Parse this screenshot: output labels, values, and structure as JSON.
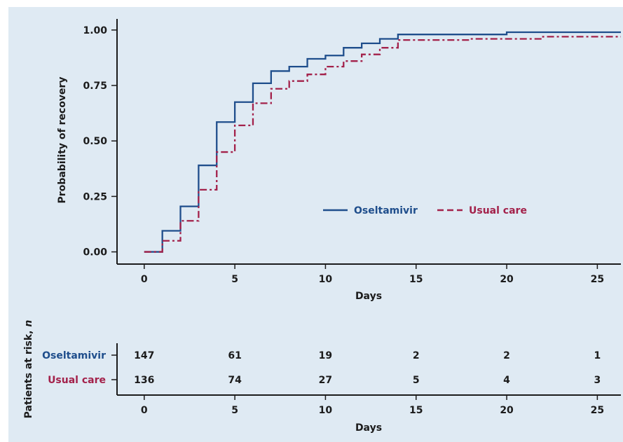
{
  "chart_data": {
    "type": "line",
    "step": true,
    "x_label": "Days",
    "y_label": "Probability of recovery",
    "xlim": [
      -1.5,
      26.3
    ],
    "ylim": [
      -0.055,
      1.05
    ],
    "x_ticks": [
      0,
      5,
      10,
      15,
      20,
      25
    ],
    "x_tick_labels": [
      "0",
      "5",
      "10",
      "15",
      "20",
      "25"
    ],
    "y_ticks": [
      0,
      0.25,
      0.5,
      0.75,
      1.0
    ],
    "y_tick_labels": [
      "0.00",
      "0.25",
      "0.50",
      "0.75",
      "1.00"
    ],
    "series": [
      {
        "name": "Oseltamivir",
        "color": "#1f4e8c",
        "dash": "solid",
        "steps": [
          [
            0,
            0.0
          ],
          [
            1,
            0.095
          ],
          [
            2,
            0.205
          ],
          [
            3,
            0.39
          ],
          [
            4,
            0.585
          ],
          [
            5,
            0.675
          ],
          [
            6,
            0.76
          ],
          [
            7,
            0.815
          ],
          [
            8,
            0.835
          ],
          [
            9,
            0.87
          ],
          [
            10,
            0.885
          ],
          [
            11,
            0.92
          ],
          [
            12,
            0.94
          ],
          [
            13,
            0.96
          ],
          [
            14,
            0.98
          ],
          [
            20,
            0.99
          ],
          [
            26.3,
            0.99
          ]
        ]
      },
      {
        "name": "Usual care",
        "color": "#a3214a",
        "dash": "dashdot",
        "steps": [
          [
            0,
            0.0
          ],
          [
            1,
            0.05
          ],
          [
            2,
            0.14
          ],
          [
            3,
            0.28
          ],
          [
            4,
            0.45
          ],
          [
            5,
            0.57
          ],
          [
            6,
            0.67
          ],
          [
            7,
            0.735
          ],
          [
            8,
            0.77
          ],
          [
            9,
            0.8
          ],
          [
            10,
            0.835
          ],
          [
            11,
            0.86
          ],
          [
            12,
            0.89
          ],
          [
            13,
            0.92
          ],
          [
            14,
            0.955
          ],
          [
            18,
            0.96
          ],
          [
            22,
            0.97
          ],
          [
            26.3,
            0.97
          ]
        ]
      }
    ],
    "legend_position": "center-right inside plot",
    "grid": false
  },
  "risk_table": {
    "y_label_text": "Patients at risk, ",
    "y_label_n": "n",
    "x_label": "Days",
    "time_points": [
      0,
      5,
      10,
      15,
      20,
      25
    ],
    "rows": [
      {
        "name": "Oseltamivir",
        "color": "#1f4e8c",
        "counts": [
          "147",
          "61",
          "19",
          "2",
          "2",
          "1"
        ]
      },
      {
        "name": "Usual care",
        "color": "#a3214a",
        "counts": [
          "136",
          "74",
          "27",
          "5",
          "4",
          "3"
        ]
      }
    ]
  }
}
